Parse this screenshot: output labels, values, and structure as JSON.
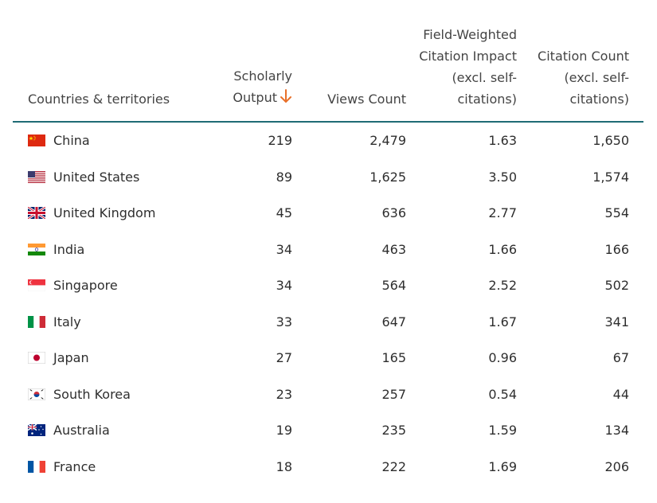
{
  "headers": {
    "country": "Countries & territories",
    "output": [
      "Scholarly",
      "Output"
    ],
    "views": "Views Count",
    "fwci": [
      "Field-Weighted",
      "Citation Impact",
      "(excl. self-",
      "citations)"
    ],
    "cites": [
      "Citation Count",
      "(excl. self-",
      "citations)"
    ],
    "sort_icon": "arrow-down-icon",
    "sort_color": "#e8702a"
  },
  "rows": [
    {
      "country": "China",
      "flag": "china-flag-icon",
      "output": "219",
      "views": "2,479",
      "fwci": "1.63",
      "cites": "1,650"
    },
    {
      "country": "United States",
      "flag": "united-states-flag-icon",
      "output": "89",
      "views": "1,625",
      "fwci": "3.50",
      "cites": "1,574"
    },
    {
      "country": "United Kingdom",
      "flag": "united-kingdom-flag-icon",
      "output": "45",
      "views": "636",
      "fwci": "2.77",
      "cites": "554"
    },
    {
      "country": "India",
      "flag": "india-flag-icon",
      "output": "34",
      "views": "463",
      "fwci": "1.66",
      "cites": "166"
    },
    {
      "country": "Singapore",
      "flag": "singapore-flag-icon",
      "output": "34",
      "views": "564",
      "fwci": "2.52",
      "cites": "502"
    },
    {
      "country": "Italy",
      "flag": "italy-flag-icon",
      "output": "33",
      "views": "647",
      "fwci": "1.67",
      "cites": "341"
    },
    {
      "country": "Japan",
      "flag": "japan-flag-icon",
      "output": "27",
      "views": "165",
      "fwci": "0.96",
      "cites": "67"
    },
    {
      "country": "South Korea",
      "flag": "south-korea-flag-icon",
      "output": "23",
      "views": "257",
      "fwci": "0.54",
      "cites": "44"
    },
    {
      "country": "Australia",
      "flag": "australia-flag-icon",
      "output": "19",
      "views": "235",
      "fwci": "1.59",
      "cites": "134"
    },
    {
      "country": "France",
      "flag": "france-flag-icon",
      "output": "18",
      "views": "222",
      "fwci": "1.69",
      "cites": "206"
    }
  ]
}
